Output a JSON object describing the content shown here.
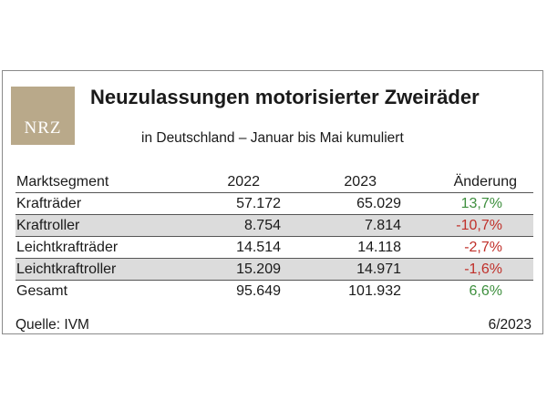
{
  "logo": {
    "text": "NRZ"
  },
  "title": "Neuzulassungen motorisierter Zweiräder",
  "subtitle": "in Deutschland – Januar bis Mai kumuliert",
  "chart_data": {
    "type": "table",
    "columns": [
      "Marktsegment",
      "2022",
      "2023",
      "Änderung"
    ],
    "rows": [
      {
        "segment": "Krafträder",
        "y2022": "57.172",
        "y2023": "65.029",
        "change": "13,7%",
        "trend": "pos"
      },
      {
        "segment": "Kraftroller",
        "y2022": "8.754",
        "y2023": "7.814",
        "change": "-10,7%",
        "trend": "neg"
      },
      {
        "segment": "Leichtkrafträder",
        "y2022": "14.514",
        "y2023": "14.118",
        "change": "-2,7%",
        "trend": "neg"
      },
      {
        "segment": "Leichtkraftroller",
        "y2022": "15.209",
        "y2023": "14.971",
        "change": "-1,6%",
        "trend": "neg"
      },
      {
        "segment": "Gesamt",
        "y2022": "95.649",
        "y2023": "101.932",
        "change": "6,6%",
        "trend": "pos"
      }
    ],
    "colors": {
      "positive": "#3e8f3e",
      "negative": "#c0302a",
      "shaded_row": "#dcdcdc",
      "logo_bg": "#b9a98a"
    }
  },
  "footer": {
    "source": "Quelle: IVM",
    "date": "6/2023"
  }
}
